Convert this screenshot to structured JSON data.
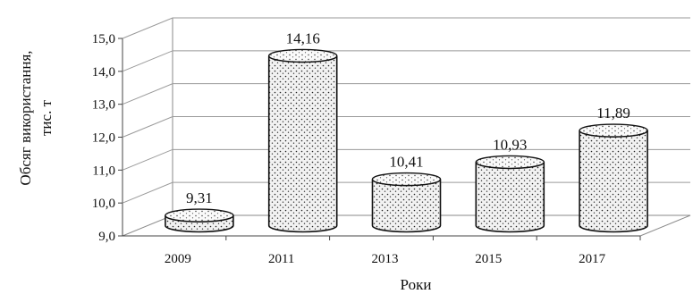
{
  "chart_data": {
    "type": "bar",
    "style": "3d-cylinder",
    "categories": [
      "2009",
      "2011",
      "2013",
      "2015",
      "2017"
    ],
    "values": [
      9.31,
      14.16,
      10.41,
      10.93,
      11.89
    ],
    "value_labels": [
      "9,31",
      "14,16",
      "10,41",
      "10,93",
      "11,89"
    ],
    "title": "",
    "xlabel": "Роки",
    "ylabel_lines": [
      "Обсяг використання,",
      "тис. т"
    ],
    "ylim": [
      9.0,
      15.0
    ],
    "yticks": [
      9.0,
      10.0,
      11.0,
      12.0,
      13.0,
      14.0,
      15.0
    ],
    "ytick_labels": [
      "9,0",
      "10,0",
      "11,0",
      "12,0",
      "13,0",
      "14,0",
      "15,0"
    ],
    "grid": true,
    "legend": "none",
    "bar_fill": "#f2f2f2",
    "dot_color": "#222222"
  }
}
